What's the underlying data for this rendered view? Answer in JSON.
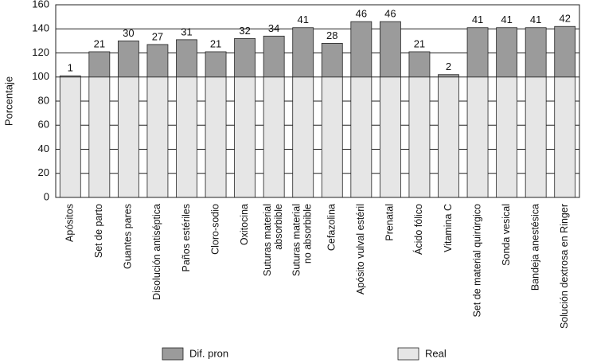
{
  "chart_data": {
    "type": "stacked_bar",
    "y_label": "Porcentaje",
    "categories": [
      "Apósitos",
      "Set de parto",
      "Guantes pares",
      "Disolución antiséptica",
      "Paños estériles",
      "Cloro-sodio",
      "Oxitocina",
      "Suturas material\nabsorbible",
      "Suturas material\nno absorbible",
      "Cefazolina",
      "Apósito vulval estéril",
      "Prenatal",
      "Ácido fólico",
      "Vitamina C",
      "Set de material quirúrgico",
      "Sonda vesical",
      "Bandeja anestésica",
      "Solución dextrosa en Ringer"
    ],
    "series": [
      {
        "name": "Dif. pron",
        "color": "#9b9b9b",
        "values": [
          1,
          21,
          30,
          27,
          31,
          21,
          32,
          34,
          41,
          28,
          46,
          46,
          21,
          2,
          41,
          41,
          41,
          42
        ]
      },
      {
        "name": "Real",
        "color": "#e6e6e6",
        "values": [
          100,
          100,
          100,
          100,
          100,
          100,
          100,
          100,
          100,
          100,
          100,
          100,
          100,
          100,
          100,
          100,
          100,
          100
        ]
      }
    ],
    "ylim": [
      0,
      160
    ],
    "yticks": [
      0,
      20,
      40,
      60,
      80,
      100,
      120,
      140,
      160
    ],
    "grid": true
  }
}
